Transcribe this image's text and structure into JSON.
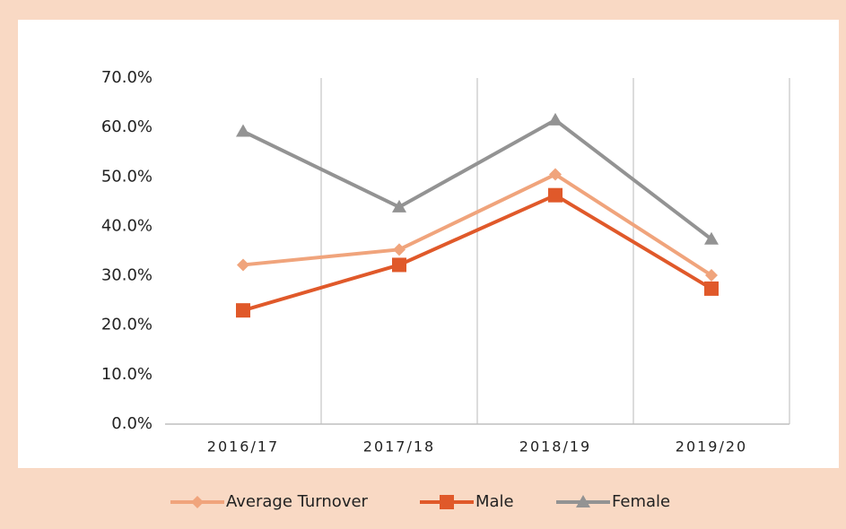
{
  "chart_data": {
    "type": "line",
    "categories": [
      "2016/17",
      "2017/18",
      "2018/19",
      "2019/20"
    ],
    "series": [
      {
        "name": "Average Turnover",
        "color": "#f0a47c",
        "marker": "diamond",
        "values": [
          32.2,
          35.3,
          50.5,
          30.1
        ]
      },
      {
        "name": "Male",
        "color": "#e0592a",
        "marker": "square",
        "values": [
          23.0,
          32.2,
          46.3,
          27.4
        ]
      },
      {
        "name": "Female",
        "color": "#939393",
        "marker": "triangle",
        "values": [
          59.2,
          43.9,
          61.5,
          37.4
        ]
      }
    ],
    "ylim": [
      0,
      70
    ],
    "yticks": [
      {
        "value": 0,
        "label": "0.0%"
      },
      {
        "value": 10,
        "label": "10.0%"
      },
      {
        "value": 20,
        "label": "20.0%"
      },
      {
        "value": 30,
        "label": "30.0%"
      },
      {
        "value": 40,
        "label": "40.0%"
      },
      {
        "value": 50,
        "label": "50.0%"
      },
      {
        "value": 60,
        "label": "60.0%"
      },
      {
        "value": 70,
        "label": "70.0%"
      }
    ],
    "grid": "x",
    "legend": "bottom"
  }
}
